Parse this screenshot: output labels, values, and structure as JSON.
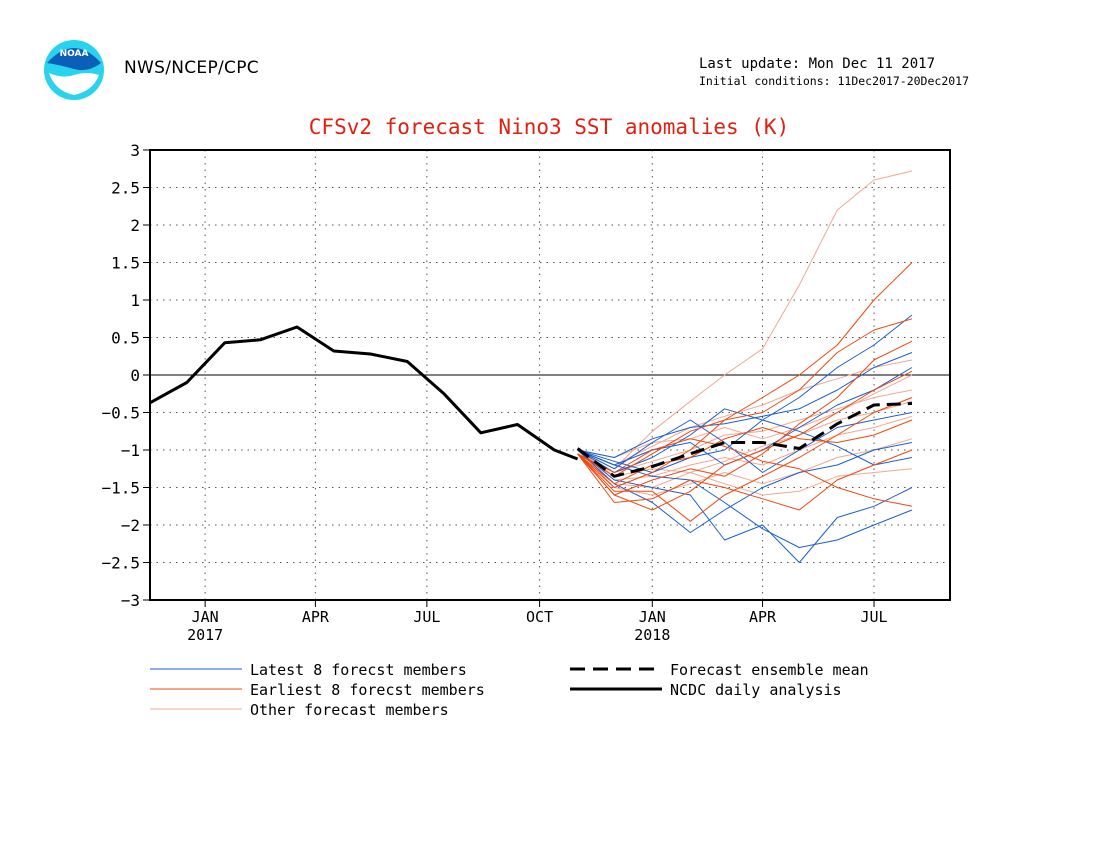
{
  "header": {
    "org": "NWS/NCEP/CPC",
    "last_update": "Last update: Mon Dec 11 2017",
    "initial_conditions": "Initial conditions: 11Dec2017-20Dec2017",
    "logo_text": "NOAA"
  },
  "colors": {
    "title": "#e02010",
    "latest_members": "#1a5fd0",
    "earliest_members": "#f0480e",
    "other_members": "#f0a894",
    "analysis": "#000000",
    "ensemble_mean": "#000000",
    "logo_outer": "#29d3f0",
    "logo_inner": "#0c5fb8"
  },
  "chart_data": {
    "type": "line",
    "title": "CFSv2 forecast Nino3 SST anomalies (K)",
    "ylim": [
      -3,
      3
    ],
    "yticks": [
      3,
      2.5,
      2,
      1.5,
      1,
      0.5,
      0,
      -0.5,
      -1,
      -1.5,
      -2,
      -2.5,
      -3
    ],
    "ytick_labels": [
      "3",
      "2.5",
      "2",
      "1.5",
      "1",
      "0.5",
      "0",
      "−0.5",
      "−1",
      "−1.5",
      "−2",
      "−2.5",
      "−3"
    ],
    "xlim": [
      "2016-12-01",
      "2018-09-15"
    ],
    "xticks": [
      {
        "date": "2017-01-15",
        "label": "JAN",
        "sublabel": "2017"
      },
      {
        "date": "2017-04-15",
        "label": "APR",
        "sublabel": ""
      },
      {
        "date": "2017-07-15",
        "label": "JUL",
        "sublabel": ""
      },
      {
        "date": "2017-10-15",
        "label": "OCT",
        "sublabel": ""
      },
      {
        "date": "2018-01-15",
        "label": "JAN",
        "sublabel": "2018"
      },
      {
        "date": "2018-04-15",
        "label": "APR",
        "sublabel": ""
      },
      {
        "date": "2018-07-15",
        "label": "JUL",
        "sublabel": ""
      }
    ],
    "grid": "dotted",
    "zero_line": true,
    "legend": [
      {
        "label": "Latest 8 forecst members",
        "style": "thin-blue"
      },
      {
        "label": "Earliest 8 forecst members",
        "style": "thin-red"
      },
      {
        "label": "Other forecast members",
        "style": "thin-pink"
      },
      {
        "label": "Forecast ensemble mean",
        "style": "dashed-black"
      },
      {
        "label": "NCDC daily analysis",
        "style": "solid-black"
      }
    ],
    "series": [
      {
        "name": "NCDC daily analysis",
        "x": [
          "2016-12-01",
          "2016-12-31",
          "2017-01-31",
          "2017-03-01",
          "2017-03-31",
          "2017-04-30",
          "2017-05-30",
          "2017-06-29",
          "2017-07-29",
          "2017-08-28",
          "2017-09-27",
          "2017-10-27",
          "2017-11-15"
        ],
        "y": [
          -0.37,
          -0.1,
          0.43,
          0.47,
          0.64,
          0.32,
          0.28,
          0.18,
          -0.25,
          -0.77,
          -0.66,
          -1.0,
          -1.12
        ]
      },
      {
        "name": "Forecast ensemble mean",
        "x": [
          "2017-11-15",
          "2017-12-15",
          "2018-01-15",
          "2018-02-15",
          "2018-03-15",
          "2018-04-15",
          "2018-05-15",
          "2018-06-15",
          "2018-07-15",
          "2018-08-15"
        ],
        "y": [
          -0.98,
          -1.35,
          -1.22,
          -1.05,
          -0.9,
          -0.9,
          -0.98,
          -0.65,
          -0.4,
          -0.38
        ]
      },
      {
        "name": "Latest 8 forecst members",
        "x": [
          "2017-11-15",
          "2017-12-15",
          "2018-01-15",
          "2018-02-15",
          "2018-03-15",
          "2018-04-15",
          "2018-05-15",
          "2018-06-15",
          "2018-07-15",
          "2018-08-15"
        ],
        "members": [
          [
            -1.0,
            -1.2,
            -1.35,
            -1.4,
            -1.7,
            -2.05,
            -2.3,
            -2.2,
            -2.0,
            -1.8
          ],
          [
            -1.0,
            -1.1,
            -0.85,
            -0.7,
            -0.65,
            -0.55,
            -0.45,
            -0.2,
            0.1,
            0.3
          ],
          [
            -1.0,
            -1.3,
            -1.1,
            -0.8,
            -0.45,
            -0.6,
            -0.3,
            0.1,
            0.4,
            0.8
          ],
          [
            -1.0,
            -1.4,
            -1.5,
            -1.6,
            -2.2,
            -2.0,
            -2.5,
            -1.9,
            -1.75,
            -1.5
          ],
          [
            -1.0,
            -1.25,
            -0.9,
            -0.6,
            -0.9,
            -1.3,
            -1.0,
            -0.7,
            -0.6,
            -0.5
          ],
          [
            -1.0,
            -1.15,
            -1.3,
            -1.1,
            -1.0,
            -0.6,
            -0.75,
            -0.95,
            -1.2,
            -1.1
          ],
          [
            -1.0,
            -1.45,
            -1.7,
            -2.1,
            -1.8,
            -1.5,
            -1.3,
            -1.2,
            -1.0,
            -0.9
          ],
          [
            -1.0,
            -1.2,
            -1.0,
            -0.9,
            -1.2,
            -1.0,
            -0.7,
            -0.4,
            -0.2,
            0.1
          ]
        ]
      },
      {
        "name": "Earliest 8 forecst members",
        "x": [
          "2017-11-15",
          "2017-12-15",
          "2018-01-15",
          "2018-02-15",
          "2018-03-15",
          "2018-04-15",
          "2018-05-15",
          "2018-06-15",
          "2018-07-15",
          "2018-08-15"
        ],
        "members": [
          [
            -1.05,
            -1.5,
            -1.3,
            -1.0,
            -0.6,
            -0.3,
            0.0,
            0.4,
            1.0,
            1.5
          ],
          [
            -1.05,
            -1.6,
            -1.8,
            -1.55,
            -1.2,
            -1.0,
            -0.8,
            -0.5,
            -0.2,
            0.05
          ],
          [
            -1.05,
            -1.35,
            -1.05,
            -0.75,
            -0.6,
            -0.5,
            -0.2,
            0.3,
            0.6,
            0.75
          ],
          [
            -1.05,
            -1.7,
            -1.65,
            -1.4,
            -1.5,
            -1.65,
            -1.8,
            -1.4,
            -1.2,
            -1.0
          ],
          [
            -1.05,
            -1.45,
            -1.2,
            -1.1,
            -0.85,
            -0.7,
            -0.85,
            -0.9,
            -0.8,
            -0.6
          ],
          [
            -1.05,
            -1.55,
            -1.55,
            -1.95,
            -1.6,
            -1.35,
            -1.1,
            -0.8,
            -0.5,
            -0.3
          ],
          [
            -1.05,
            -1.3,
            -1.0,
            -0.85,
            -0.95,
            -1.15,
            -1.25,
            -1.5,
            -1.65,
            -1.75
          ],
          [
            -1.05,
            -1.6,
            -1.4,
            -1.25,
            -1.35,
            -1.05,
            -0.65,
            -0.3,
            0.2,
            0.45
          ]
        ]
      },
      {
        "name": "Other forecast members",
        "x": [
          "2017-11-15",
          "2017-12-15",
          "2018-01-15",
          "2018-02-15",
          "2018-03-15",
          "2018-04-15",
          "2018-05-15",
          "2018-06-15",
          "2018-07-15",
          "2018-08-15"
        ],
        "members": [
          [
            -1.0,
            -1.25,
            -0.75,
            -0.35,
            0.0,
            0.35,
            1.2,
            2.2,
            2.6,
            2.72
          ],
          [
            -1.0,
            -1.3,
            -1.15,
            -1.0,
            -0.8,
            -0.75,
            -0.6,
            -0.45,
            -0.3,
            -0.2
          ],
          [
            -1.0,
            -1.4,
            -1.35,
            -1.2,
            -1.1,
            -1.2,
            -1.0,
            -0.8,
            -0.7,
            -0.55
          ],
          [
            -1.0,
            -1.2,
            -0.95,
            -0.7,
            -0.55,
            -0.4,
            -0.2,
            -0.05,
            0.1,
            0.2
          ],
          [
            -1.0,
            -1.5,
            -1.6,
            -1.45,
            -1.3,
            -1.45,
            -1.3,
            -1.1,
            -1.0,
            -0.85
          ],
          [
            -1.0,
            -1.35,
            -1.25,
            -1.3,
            -1.15,
            -0.95,
            -0.8,
            -0.6,
            -0.5,
            -0.35
          ],
          [
            -1.0,
            -1.1,
            -0.9,
            -0.85,
            -0.7,
            -0.85,
            -0.7,
            -0.5,
            -0.25,
            0.0
          ],
          [
            -1.0,
            -1.45,
            -1.5,
            -1.3,
            -1.45,
            -1.6,
            -1.55,
            -1.35,
            -1.3,
            -1.25
          ]
        ]
      }
    ]
  }
}
